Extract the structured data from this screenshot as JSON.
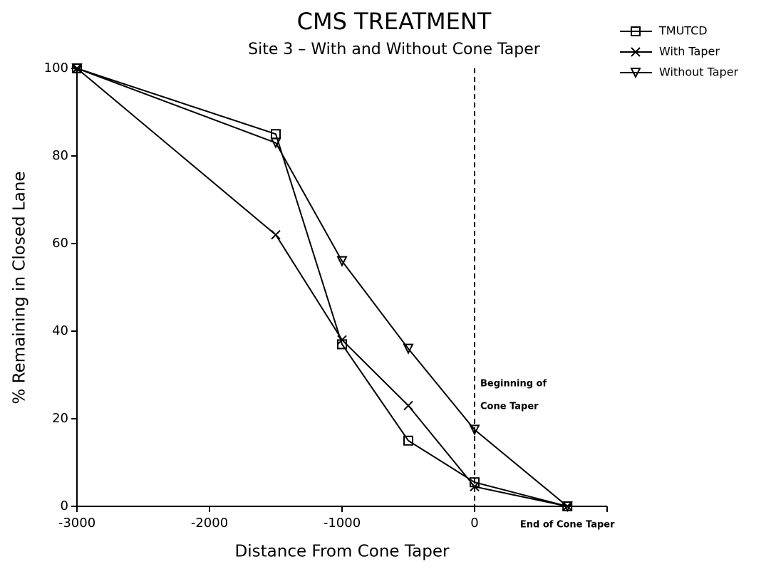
{
  "chart_data": {
    "type": "line",
    "title": "CMS TREATMENT",
    "subtitle": "Site 3 – With and Without Cone Taper",
    "x_label": "Distance From Cone Taper",
    "y_label": "% Remaining in Closed Lane",
    "x": [
      -3000,
      -1500,
      -1000,
      -500,
      0,
      700
    ],
    "series": [
      {
        "name": "TMUTCD",
        "color": "#000000",
        "marker": "square",
        "values": [
          100,
          85,
          37,
          15,
          5.5,
          0
        ]
      },
      {
        "name": "With Taper",
        "color": "#000000",
        "marker": "x",
        "values": [
          100,
          62,
          38,
          23,
          4.5,
          0
        ]
      },
      {
        "name": "Without Taper",
        "color": "#000000",
        "marker": "triangle-down",
        "values": [
          100,
          83,
          56,
          36,
          17.5,
          0
        ]
      }
    ],
    "xlim": [
      -3000,
      1000
    ],
    "xticks": [
      -3000,
      -2000,
      -1000,
      0
    ],
    "ylim": [
      0,
      100
    ],
    "yticks": [
      0,
      20,
      40,
      60,
      80,
      100
    ],
    "reference_line": {
      "x": 0,
      "style": "dashed"
    },
    "annotations": [
      {
        "x": 0,
        "y": 28,
        "lines": [
          "Beginning of",
          "Cone Taper"
        ]
      },
      {
        "x": 700,
        "y": 0,
        "lines": [
          "End of Cone Taper"
        ]
      }
    ],
    "legend": "outside-top-right",
    "grid": false
  }
}
